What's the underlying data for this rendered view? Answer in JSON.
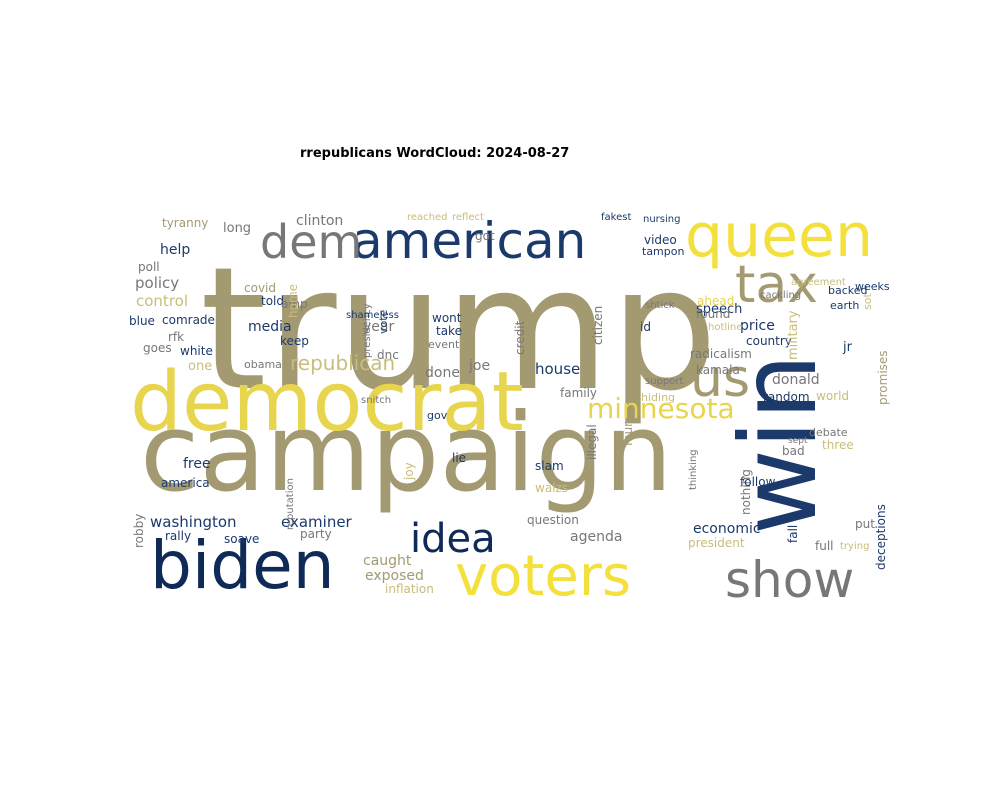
{
  "title": "rrepublicans WordCloud: 2024-08-27",
  "palette": {
    "tan": "#a39a72",
    "gold": "#e8d54e",
    "yellow": "#f4e03c",
    "navy": "#1b3a6b",
    "darknavy": "#0f2a56",
    "gray": "#77777a",
    "khaki": "#c9bd7a"
  },
  "words": [
    {
      "text": "trump",
      "color": "tan"
    },
    {
      "text": "campaign",
      "color": "tan"
    },
    {
      "text": "democrat",
      "color": "gold"
    },
    {
      "text": "queen",
      "color": "yellow"
    },
    {
      "text": "american",
      "color": "navy"
    },
    {
      "text": "win",
      "color": "navy"
    },
    {
      "text": "biden",
      "color": "darknavy"
    },
    {
      "text": "voters",
      "color": "yellow"
    },
    {
      "text": "show",
      "color": "gray"
    },
    {
      "text": "dem",
      "color": "gray"
    },
    {
      "text": "tax",
      "color": "tan"
    },
    {
      "text": "us",
      "color": "tan"
    },
    {
      "text": "idea",
      "color": "darknavy"
    },
    {
      "text": "minnesota",
      "color": "gold"
    },
    {
      "text": "republican",
      "color": "khaki"
    },
    {
      "text": "washington",
      "color": "navy"
    },
    {
      "text": "examiner",
      "color": "navy"
    },
    {
      "text": "economic",
      "color": "navy"
    },
    {
      "text": "exposed",
      "color": "tan"
    },
    {
      "text": "inflation",
      "color": "khaki"
    },
    {
      "text": "media",
      "color": "navy"
    },
    {
      "text": "policy",
      "color": "gray"
    },
    {
      "text": "control",
      "color": "khaki"
    },
    {
      "text": "help",
      "color": "navy"
    },
    {
      "text": "tyranny",
      "color": "tan"
    },
    {
      "text": "long",
      "color": "gray"
    },
    {
      "text": "clinton",
      "color": "gray"
    },
    {
      "text": "house",
      "color": "navy"
    },
    {
      "text": "done",
      "color": "gray"
    },
    {
      "text": "joe",
      "color": "gray"
    },
    {
      "text": "donald",
      "color": "gray"
    },
    {
      "text": "price",
      "color": "navy"
    },
    {
      "text": "country",
      "color": "navy"
    },
    {
      "text": "radicalism",
      "color": "gray"
    },
    {
      "text": "speech",
      "color": "navy"
    },
    {
      "text": "found",
      "color": "gray"
    },
    {
      "text": "ahead",
      "color": "gold"
    },
    {
      "text": "military",
      "color": "khaki"
    },
    {
      "text": "kamala",
      "color": "gray"
    },
    {
      "text": "random",
      "color": "navy"
    },
    {
      "text": "world",
      "color": "khaki"
    },
    {
      "text": "agenda",
      "color": "gray"
    },
    {
      "text": "question",
      "color": "gray"
    },
    {
      "text": "president",
      "color": "khaki"
    },
    {
      "text": "party",
      "color": "gray"
    },
    {
      "text": "caught",
      "color": "tan"
    },
    {
      "text": "rally",
      "color": "navy"
    },
    {
      "text": "soave",
      "color": "navy"
    },
    {
      "text": "free",
      "color": "navy"
    },
    {
      "text": "america",
      "color": "navy"
    },
    {
      "text": "white",
      "color": "navy"
    },
    {
      "text": "one",
      "color": "khaki"
    },
    {
      "text": "rfk",
      "color": "gray"
    },
    {
      "text": "blue",
      "color": "navy"
    },
    {
      "text": "comrade",
      "color": "navy"
    },
    {
      "text": "goes",
      "color": "gray"
    },
    {
      "text": "year",
      "color": "gray"
    },
    {
      "text": "told",
      "color": "navy"
    },
    {
      "text": "covid",
      "color": "tan"
    },
    {
      "text": "keep",
      "color": "navy"
    },
    {
      "text": "amp",
      "color": "gray"
    },
    {
      "text": "dnc",
      "color": "gray"
    },
    {
      "text": "wont",
      "color": "navy"
    },
    {
      "text": "take",
      "color": "navy"
    },
    {
      "text": "event",
      "color": "gray"
    },
    {
      "text": "credit",
      "color": "gray"
    },
    {
      "text": "citizen",
      "color": "gray"
    },
    {
      "text": "id",
      "color": "navy"
    },
    {
      "text": "video",
      "color": "navy"
    },
    {
      "text": "tampon",
      "color": "navy"
    },
    {
      "text": "got",
      "color": "gray"
    },
    {
      "text": "reached",
      "color": "khaki"
    },
    {
      "text": "reflect",
      "color": "khaki"
    },
    {
      "text": "fakest",
      "color": "navy"
    },
    {
      "text": "nursing",
      "color": "navy"
    },
    {
      "text": "weeks",
      "color": "navy"
    },
    {
      "text": "family",
      "color": "gray"
    },
    {
      "text": "hiding",
      "color": "khaki"
    },
    {
      "text": "four",
      "color": "tan"
    },
    {
      "text": "gov",
      "color": "navy"
    },
    {
      "text": "lie",
      "color": "navy"
    },
    {
      "text": "slam",
      "color": "navy"
    },
    {
      "text": "walzs",
      "color": "khaki"
    },
    {
      "text": "illegal",
      "color": "gray"
    },
    {
      "text": "nothing",
      "color": "gray"
    },
    {
      "text": "follow",
      "color": "navy"
    },
    {
      "text": "bad",
      "color": "gray"
    },
    {
      "text": "three",
      "color": "khaki"
    },
    {
      "text": "fall",
      "color": "navy"
    },
    {
      "text": "full",
      "color": "gray"
    },
    {
      "text": "trying",
      "color": "khaki"
    },
    {
      "text": "put",
      "color": "gray"
    },
    {
      "text": "deceptions",
      "color": "navy"
    },
    {
      "text": "promises",
      "color": "tan"
    },
    {
      "text": "jr",
      "color": "navy"
    },
    {
      "text": "debate",
      "color": "gray"
    },
    {
      "text": "obama",
      "color": "gray"
    },
    {
      "text": "snitch",
      "color": "gray"
    },
    {
      "text": "robby",
      "color": "gray"
    },
    {
      "text": "joy",
      "color": "khaki"
    },
    {
      "text": "vote",
      "color": "navy"
    },
    {
      "text": "presidency",
      "color": "gray"
    },
    {
      "text": "shameless",
      "color": "navy"
    },
    {
      "text": "home",
      "color": "khaki"
    },
    {
      "text": "poll",
      "color": "gray"
    },
    {
      "text": "backed",
      "color": "navy"
    },
    {
      "text": "cackling",
      "color": "gray"
    },
    {
      "text": "earth",
      "color": "navy"
    },
    {
      "text": "sept",
      "color": "gray"
    },
    {
      "text": "agreement",
      "color": "khaki"
    },
    {
      "text": "hotline",
      "color": "khaki"
    },
    {
      "text": "sot",
      "color": "khaki"
    },
    {
      "text": "shtick",
      "color": "gray"
    },
    {
      "text": "support",
      "color": "gray"
    },
    {
      "text": "thinking",
      "color": "gray"
    },
    {
      "text": "reputation",
      "color": "gray"
    }
  ]
}
